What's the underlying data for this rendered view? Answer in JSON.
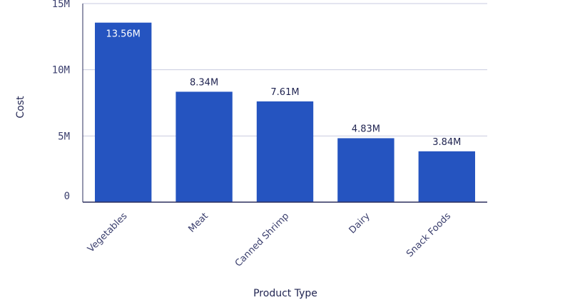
{
  "chart_data": {
    "type": "bar",
    "categories": [
      "Vegetables",
      "Meat",
      "Canned Shrimp",
      "Dairy",
      "Snack Foods"
    ],
    "values": [
      13.56,
      8.34,
      7.61,
      4.83,
      3.84
    ],
    "value_labels": [
      "13.56M",
      "8.34M",
      "7.61M",
      "4.83M",
      "3.84M"
    ],
    "ylim": [
      0,
      15
    ],
    "yticks": [
      0,
      5,
      10,
      15
    ],
    "ytick_labels": [
      "0",
      "5M",
      "10M",
      "15M"
    ],
    "xlabel": "Product Type",
    "ylabel": "Cost",
    "grid": true,
    "colors": {
      "bar": "#2554c0",
      "grid": "#c9cbe0",
      "axis": "#2b2f5e",
      "label_inside": "#ffffff",
      "label_outside": "#1f2350"
    }
  }
}
